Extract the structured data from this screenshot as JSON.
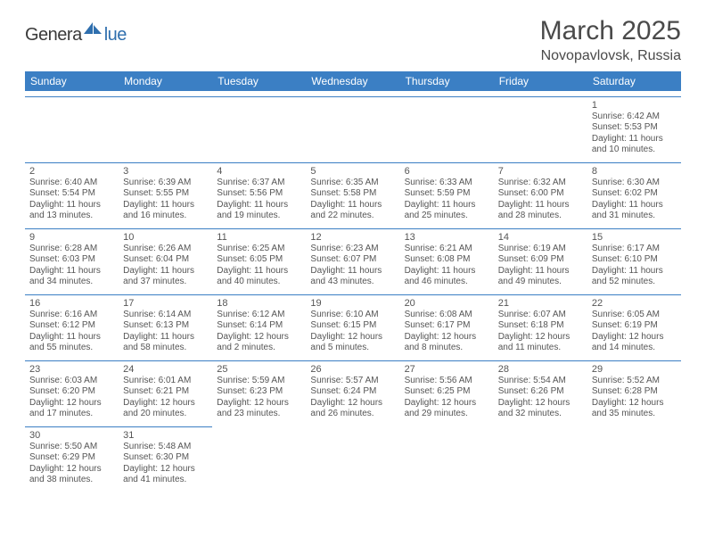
{
  "logo": {
    "part1": "Genera",
    "part2": "lue"
  },
  "header": {
    "title": "March 2025",
    "location": "Novopavlovsk, Russia"
  },
  "colors": {
    "header_bg": "#3b7fc4",
    "header_text": "#ffffff",
    "cell_border": "#3b7fc4",
    "text": "#555555",
    "logo_gray": "#3a3a3a",
    "logo_blue": "#2f6fae"
  },
  "weekdays": [
    "Sunday",
    "Monday",
    "Tuesday",
    "Wednesday",
    "Thursday",
    "Friday",
    "Saturday"
  ],
  "weeks": [
    [
      null,
      null,
      null,
      null,
      null,
      null,
      {
        "n": "1",
        "sunrise": "6:42 AM",
        "sunset": "5:53 PM",
        "daylight": "11 hours and 10 minutes."
      }
    ],
    [
      {
        "n": "2",
        "sunrise": "6:40 AM",
        "sunset": "5:54 PM",
        "daylight": "11 hours and 13 minutes."
      },
      {
        "n": "3",
        "sunrise": "6:39 AM",
        "sunset": "5:55 PM",
        "daylight": "11 hours and 16 minutes."
      },
      {
        "n": "4",
        "sunrise": "6:37 AM",
        "sunset": "5:56 PM",
        "daylight": "11 hours and 19 minutes."
      },
      {
        "n": "5",
        "sunrise": "6:35 AM",
        "sunset": "5:58 PM",
        "daylight": "11 hours and 22 minutes."
      },
      {
        "n": "6",
        "sunrise": "6:33 AM",
        "sunset": "5:59 PM",
        "daylight": "11 hours and 25 minutes."
      },
      {
        "n": "7",
        "sunrise": "6:32 AM",
        "sunset": "6:00 PM",
        "daylight": "11 hours and 28 minutes."
      },
      {
        "n": "8",
        "sunrise": "6:30 AM",
        "sunset": "6:02 PM",
        "daylight": "11 hours and 31 minutes."
      }
    ],
    [
      {
        "n": "9",
        "sunrise": "6:28 AM",
        "sunset": "6:03 PM",
        "daylight": "11 hours and 34 minutes."
      },
      {
        "n": "10",
        "sunrise": "6:26 AM",
        "sunset": "6:04 PM",
        "daylight": "11 hours and 37 minutes."
      },
      {
        "n": "11",
        "sunrise": "6:25 AM",
        "sunset": "6:05 PM",
        "daylight": "11 hours and 40 minutes."
      },
      {
        "n": "12",
        "sunrise": "6:23 AM",
        "sunset": "6:07 PM",
        "daylight": "11 hours and 43 minutes."
      },
      {
        "n": "13",
        "sunrise": "6:21 AM",
        "sunset": "6:08 PM",
        "daylight": "11 hours and 46 minutes."
      },
      {
        "n": "14",
        "sunrise": "6:19 AM",
        "sunset": "6:09 PM",
        "daylight": "11 hours and 49 minutes."
      },
      {
        "n": "15",
        "sunrise": "6:17 AM",
        "sunset": "6:10 PM",
        "daylight": "11 hours and 52 minutes."
      }
    ],
    [
      {
        "n": "16",
        "sunrise": "6:16 AM",
        "sunset": "6:12 PM",
        "daylight": "11 hours and 55 minutes."
      },
      {
        "n": "17",
        "sunrise": "6:14 AM",
        "sunset": "6:13 PM",
        "daylight": "11 hours and 58 minutes."
      },
      {
        "n": "18",
        "sunrise": "6:12 AM",
        "sunset": "6:14 PM",
        "daylight": "12 hours and 2 minutes."
      },
      {
        "n": "19",
        "sunrise": "6:10 AM",
        "sunset": "6:15 PM",
        "daylight": "12 hours and 5 minutes."
      },
      {
        "n": "20",
        "sunrise": "6:08 AM",
        "sunset": "6:17 PM",
        "daylight": "12 hours and 8 minutes."
      },
      {
        "n": "21",
        "sunrise": "6:07 AM",
        "sunset": "6:18 PM",
        "daylight": "12 hours and 11 minutes."
      },
      {
        "n": "22",
        "sunrise": "6:05 AM",
        "sunset": "6:19 PM",
        "daylight": "12 hours and 14 minutes."
      }
    ],
    [
      {
        "n": "23",
        "sunrise": "6:03 AM",
        "sunset": "6:20 PM",
        "daylight": "12 hours and 17 minutes."
      },
      {
        "n": "24",
        "sunrise": "6:01 AM",
        "sunset": "6:21 PM",
        "daylight": "12 hours and 20 minutes."
      },
      {
        "n": "25",
        "sunrise": "5:59 AM",
        "sunset": "6:23 PM",
        "daylight": "12 hours and 23 minutes."
      },
      {
        "n": "26",
        "sunrise": "5:57 AM",
        "sunset": "6:24 PM",
        "daylight": "12 hours and 26 minutes."
      },
      {
        "n": "27",
        "sunrise": "5:56 AM",
        "sunset": "6:25 PM",
        "daylight": "12 hours and 29 minutes."
      },
      {
        "n": "28",
        "sunrise": "5:54 AM",
        "sunset": "6:26 PM",
        "daylight": "12 hours and 32 minutes."
      },
      {
        "n": "29",
        "sunrise": "5:52 AM",
        "sunset": "6:28 PM",
        "daylight": "12 hours and 35 minutes."
      }
    ],
    [
      {
        "n": "30",
        "sunrise": "5:50 AM",
        "sunset": "6:29 PM",
        "daylight": "12 hours and 38 minutes."
      },
      {
        "n": "31",
        "sunrise": "5:48 AM",
        "sunset": "6:30 PM",
        "daylight": "12 hours and 41 minutes."
      },
      null,
      null,
      null,
      null,
      null
    ]
  ],
  "labels": {
    "sunrise": "Sunrise:",
    "sunset": "Sunset:",
    "daylight": "Daylight:"
  }
}
